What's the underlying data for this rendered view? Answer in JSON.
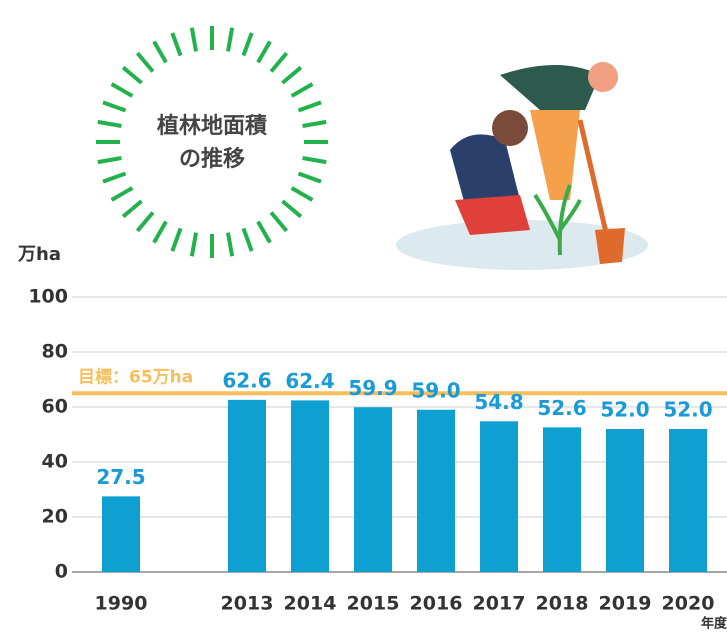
{
  "chart_data": {
    "type": "bar",
    "title": [
      "植林地面積",
      "の推移"
    ],
    "y_unit": "万ha",
    "x_unit": "年度",
    "categories": [
      "1990",
      null,
      "2013",
      "2014",
      "2015",
      "2016",
      "2017",
      "2018",
      "2019",
      "2020"
    ],
    "values": [
      27.5,
      null,
      62.6,
      62.4,
      59.9,
      59.0,
      54.8,
      52.6,
      52.0,
      52.0
    ],
    "value_labels": [
      "27.5",
      null,
      "62.6",
      "62.4",
      "59.9",
      "59.0",
      "54.8",
      "52.6",
      "52.0",
      "52.0"
    ],
    "color": "#0fa0d2",
    "label_color": "#1a9ad6",
    "target": {
      "value": 65,
      "label": "目標：65万ha",
      "color": "#f7bf5c"
    },
    "ylim": [
      0,
      100
    ],
    "yticks": [
      0,
      20,
      40,
      60,
      80,
      100
    ],
    "grid": true
  }
}
